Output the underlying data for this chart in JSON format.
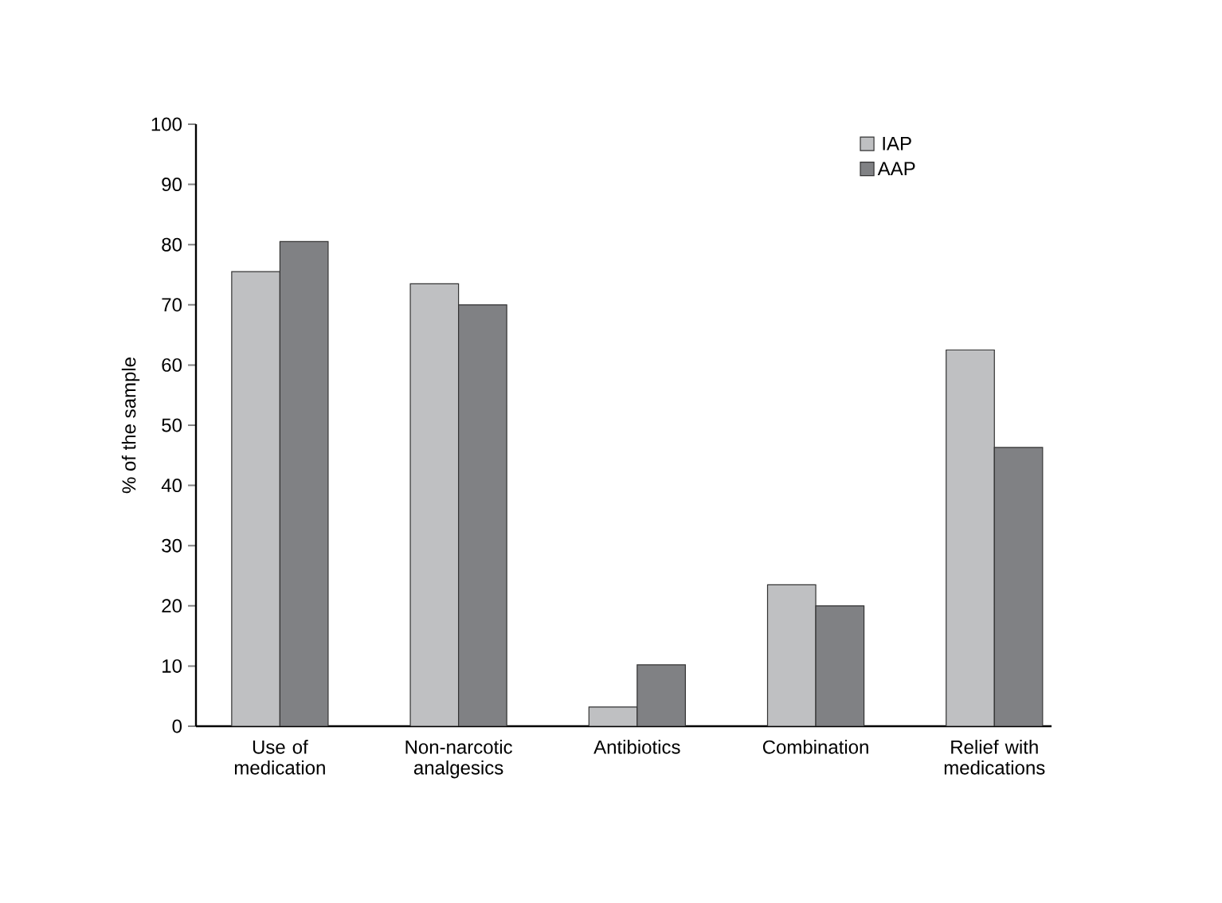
{
  "chart_data": {
    "type": "bar",
    "ylabel": "% of the sample",
    "categories": [
      "Use of medication",
      "Non-narcotic analgesics",
      "Antibiotics",
      "Combination",
      "Relief with medications"
    ],
    "series": [
      {
        "name": "IAP",
        "color": "#bfc0c2",
        "values": [
          75.5,
          73.5,
          3.2,
          23.5,
          62.5
        ]
      },
      {
        "name": "AAP",
        "color": "#808184",
        "values": [
          80.5,
          70,
          10.2,
          20,
          46.3
        ]
      }
    ],
    "ylim": [
      0,
      100
    ],
    "yticks": [
      0,
      10,
      20,
      30,
      40,
      50,
      60,
      70,
      80,
      90,
      100
    ],
    "grid": false,
    "legend": "top right"
  }
}
